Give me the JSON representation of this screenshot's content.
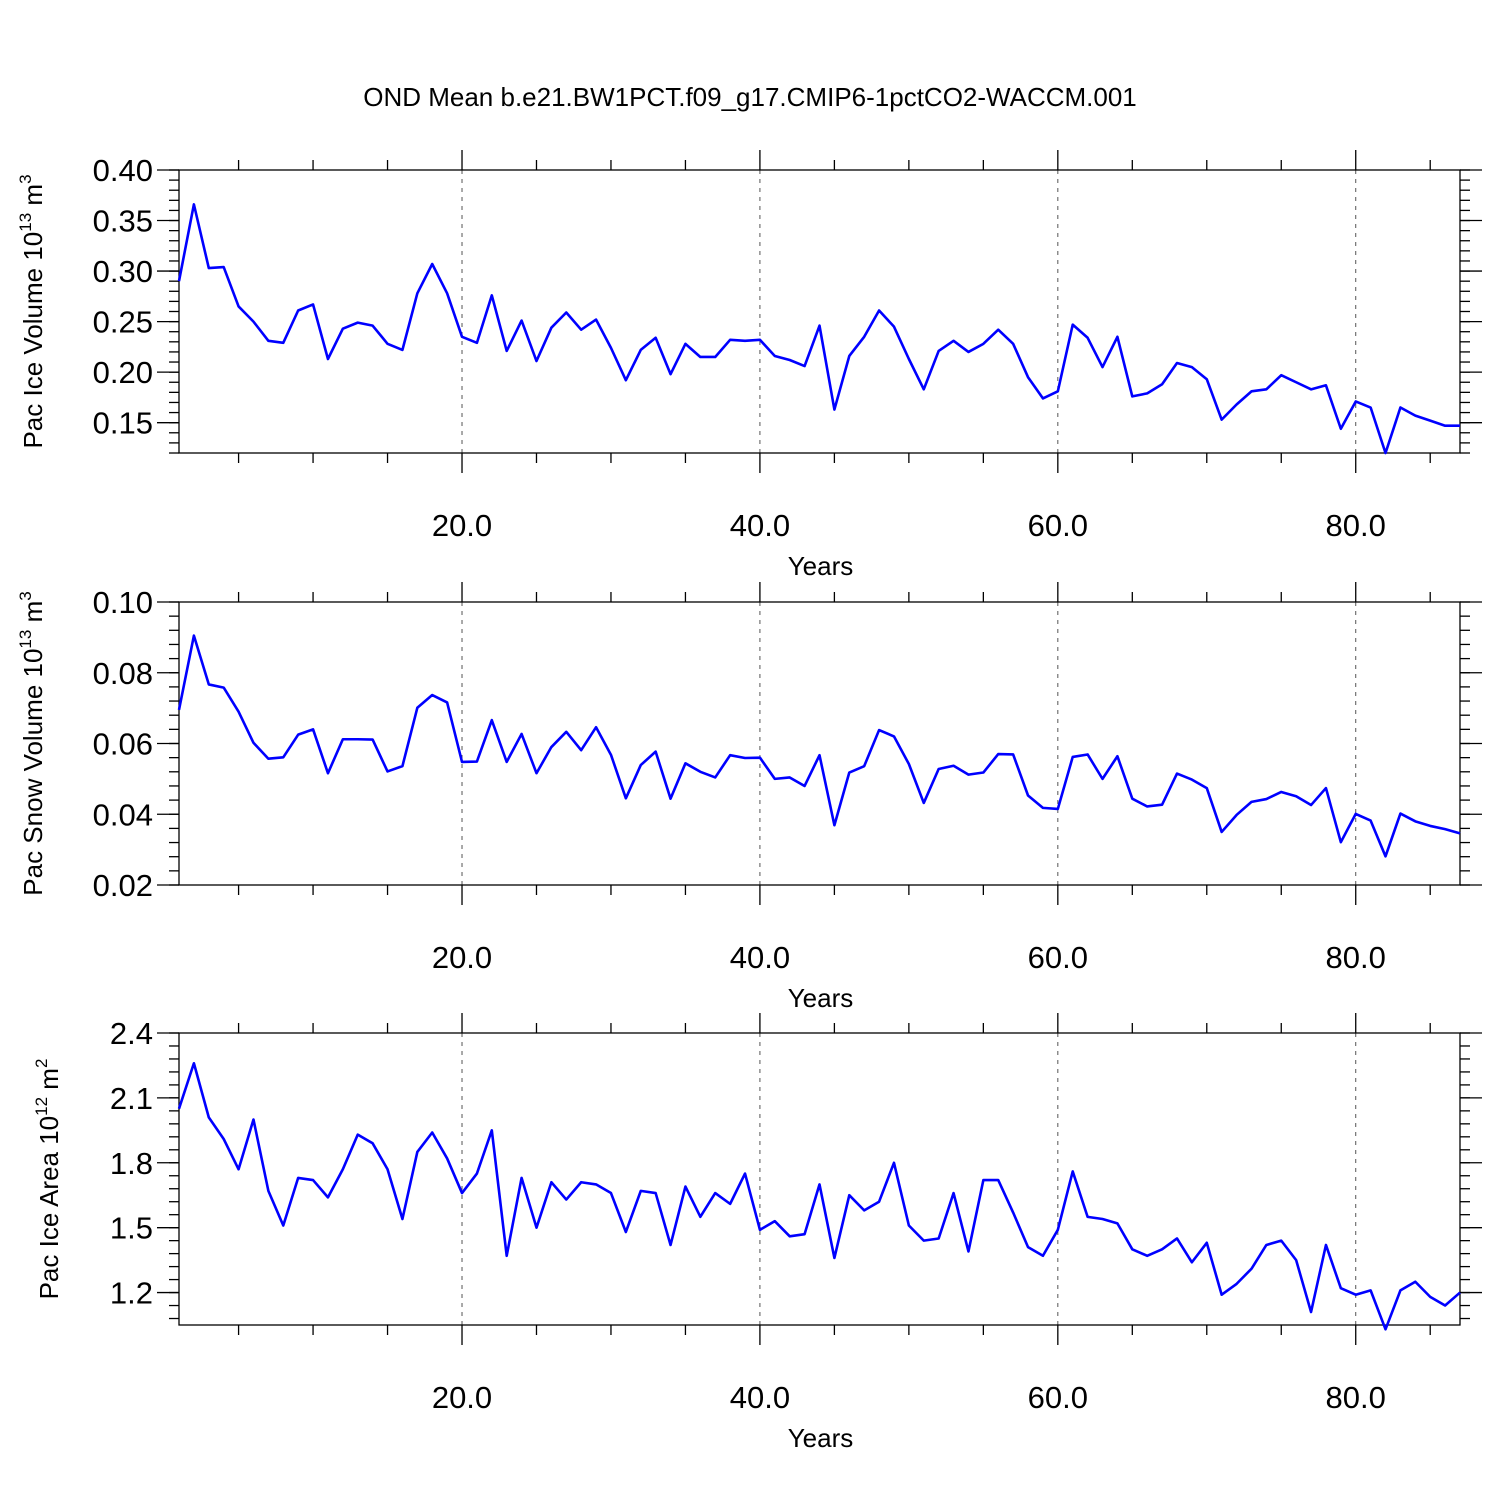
{
  "title": "OND Mean b.e21.BW1PCT.f09_g17.CMIP6-1pctCO2-WACCM.001",
  "colors": {
    "line": "#0000ff",
    "axis": "#000000",
    "grid": "#555555"
  },
  "chart_data": [
    {
      "type": "line",
      "ylabel": {
        "main": "Pac Ice Volume 10",
        "sup": "13",
        "unit": " m",
        "unit_sup": "3"
      },
      "xlabel": "Years",
      "xlim": [
        1,
        87
      ],
      "ylim": [
        0.12,
        0.4
      ],
      "grid": "vertical dashed at x ticks",
      "x_ticks": [
        20,
        40,
        60,
        80
      ],
      "x_tick_labels": [
        "20.0",
        "40.0",
        "60.0",
        "80.0"
      ],
      "y_ticks": [
        0.15,
        0.2,
        0.25,
        0.3,
        0.35,
        0.4
      ],
      "y_tick_labels": [
        "0.15",
        "0.20",
        "0.25",
        "0.30",
        "0.35",
        "0.40"
      ],
      "series": [
        {
          "x_start": 1,
          "x_step": 1,
          "values": [
            0.29,
            0.366,
            0.303,
            0.304,
            0.265,
            0.25,
            0.231,
            0.229,
            0.261,
            0.267,
            0.213,
            0.243,
            0.249,
            0.246,
            0.228,
            0.222,
            0.278,
            0.307,
            0.278,
            0.235,
            0.229,
            0.276,
            0.221,
            0.251,
            0.211,
            0.244,
            0.259,
            0.242,
            0.252,
            0.224,
            0.192,
            0.222,
            0.234,
            0.198,
            0.228,
            0.215,
            0.215,
            0.232,
            0.231,
            0.232,
            0.216,
            0.212,
            0.206,
            0.246,
            0.163,
            0.216,
            0.235,
            0.261,
            0.245,
            0.213,
            0.183,
            0.221,
            0.231,
            0.22,
            0.228,
            0.242,
            0.228,
            0.195,
            0.174,
            0.181,
            0.247,
            0.234,
            0.205,
            0.235,
            0.176,
            0.179,
            0.188,
            0.209,
            0.205,
            0.193,
            0.153,
            0.168,
            0.181,
            0.183,
            0.197,
            0.19,
            0.183,
            0.187,
            0.144,
            0.171,
            0.165,
            0.12,
            0.165,
            0.157,
            0.152,
            0.147,
            0.147
          ]
        }
      ]
    },
    {
      "type": "line",
      "ylabel": {
        "main": "Pac Snow Volume 10",
        "sup": "13",
        "unit": " m",
        "unit_sup": "3"
      },
      "xlabel": "Years",
      "xlim": [
        1,
        87
      ],
      "ylim": [
        0.02,
        0.1
      ],
      "grid": "vertical dashed at x ticks",
      "x_ticks": [
        20,
        40,
        60,
        80
      ],
      "x_tick_labels": [
        "20.0",
        "40.0",
        "60.0",
        "80.0"
      ],
      "y_ticks": [
        0.02,
        0.04,
        0.06,
        0.08,
        0.1
      ],
      "y_tick_labels": [
        "0.02",
        "0.04",
        "0.06",
        "0.08",
        "0.10"
      ],
      "series": [
        {
          "x_start": 1,
          "x_step": 1,
          "values": [
            0.0695,
            0.0905,
            0.0767,
            0.0758,
            0.069,
            0.0602,
            0.0557,
            0.0561,
            0.0625,
            0.064,
            0.0516,
            0.0612,
            0.0612,
            0.0611,
            0.0521,
            0.0536,
            0.0701,
            0.0737,
            0.0716,
            0.0548,
            0.0549,
            0.0666,
            0.0548,
            0.0627,
            0.0516,
            0.059,
            0.0633,
            0.0581,
            0.0646,
            0.0568,
            0.0445,
            0.0539,
            0.0577,
            0.0444,
            0.0544,
            0.052,
            0.0504,
            0.0567,
            0.0559,
            0.056,
            0.05,
            0.0504,
            0.048,
            0.0567,
            0.0369,
            0.0518,
            0.0536,
            0.0638,
            0.062,
            0.0542,
            0.0432,
            0.0528,
            0.0537,
            0.0512,
            0.0518,
            0.057,
            0.0569,
            0.0453,
            0.0418,
            0.0415,
            0.0562,
            0.0569,
            0.05,
            0.0564,
            0.0444,
            0.0422,
            0.0427,
            0.0515,
            0.0498,
            0.0474,
            0.035,
            0.0398,
            0.0435,
            0.0443,
            0.0463,
            0.0451,
            0.0426,
            0.0474,
            0.0321,
            0.0401,
            0.0382,
            0.0281,
            0.0402,
            0.038,
            0.0367,
            0.0358,
            0.0346
          ]
        }
      ]
    },
    {
      "type": "line",
      "ylabel": {
        "main": "Pac Ice Area 10",
        "sup": "12",
        "unit": " m",
        "unit_sup": "2"
      },
      "xlabel": "Years",
      "xlim": [
        1,
        87
      ],
      "ylim": [
        1.05,
        2.4
      ],
      "grid": "vertical dashed at x ticks",
      "x_ticks": [
        20,
        40,
        60,
        80
      ],
      "x_tick_labels": [
        "20.0",
        "40.0",
        "60.0",
        "80.0"
      ],
      "y_ticks": [
        1.2,
        1.5,
        1.8,
        2.1,
        2.4
      ],
      "y_tick_labels": [
        "1.2",
        "1.5",
        "1.8",
        "2.1",
        "2.4"
      ],
      "series": [
        {
          "x_start": 1,
          "x_step": 1,
          "values": [
            2.05,
            2.26,
            2.01,
            1.91,
            1.77,
            2.0,
            1.67,
            1.51,
            1.73,
            1.72,
            1.64,
            1.77,
            1.93,
            1.89,
            1.77,
            1.54,
            1.85,
            1.94,
            1.82,
            1.66,
            1.75,
            1.95,
            1.37,
            1.73,
            1.5,
            1.71,
            1.63,
            1.71,
            1.7,
            1.66,
            1.48,
            1.67,
            1.66,
            1.42,
            1.69,
            1.55,
            1.66,
            1.61,
            1.75,
            1.49,
            1.53,
            1.46,
            1.47,
            1.7,
            1.36,
            1.65,
            1.58,
            1.62,
            1.8,
            1.51,
            1.44,
            1.45,
            1.66,
            1.39,
            1.72,
            1.72,
            1.57,
            1.41,
            1.37,
            1.49,
            1.76,
            1.55,
            1.54,
            1.52,
            1.4,
            1.37,
            1.4,
            1.45,
            1.34,
            1.43,
            1.19,
            1.24,
            1.31,
            1.42,
            1.44,
            1.35,
            1.11,
            1.42,
            1.22,
            1.19,
            1.21,
            1.03,
            1.21,
            1.25,
            1.18,
            1.14,
            1.2
          ]
        }
      ]
    }
  ]
}
